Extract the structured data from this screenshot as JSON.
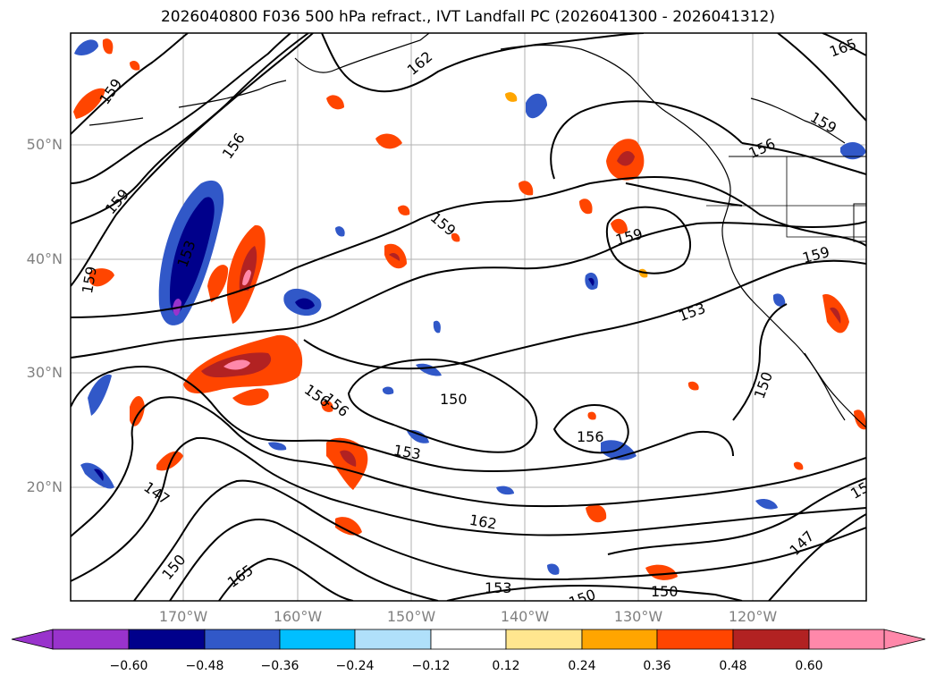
{
  "title": "2026040800 F036 500 hPa refract., IVT Landfall PC (2026041300 - 2026041312)",
  "lat_labels": [
    "50°N",
    "40°N",
    "30°N",
    "20°N"
  ],
  "lon_labels": [
    "170°W",
    "160°W",
    "150°W",
    "140°W",
    "130°W",
    "120°W"
  ],
  "contour_labels": [
    "159",
    "156",
    "162",
    "165",
    "159",
    "153",
    "159",
    "150",
    "153",
    "156",
    "156",
    "159",
    "159",
    "159",
    "147",
    "150",
    "165",
    "162",
    "153",
    "150",
    "153",
    "156",
    "147",
    "150",
    "150",
    "159",
    "156",
    "150",
    "15"
  ],
  "colorbar": {
    "labels": [
      "−0.60",
      "−0.48",
      "−0.36",
      "−0.24",
      "−0.12",
      "0.12",
      "0.24",
      "0.36",
      "0.48",
      "0.60"
    ],
    "colors": [
      "#9933cc",
      "#00008b",
      "#3158c8",
      "#00bfff",
      "#b0e0fa",
      "#ffffff",
      "#ffe68f",
      "#ffa500",
      "#ff4500",
      "#b22222",
      "#ff88aa"
    ]
  }
}
